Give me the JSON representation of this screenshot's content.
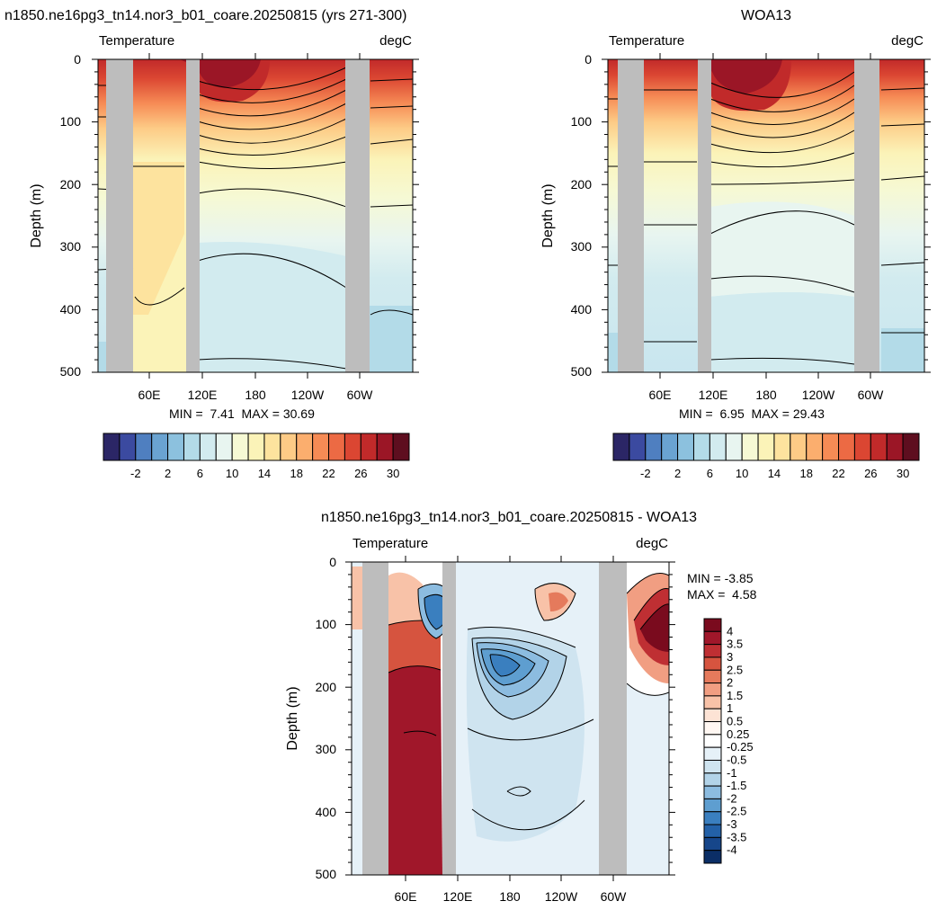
{
  "panels": [
    {
      "id": "model",
      "title": "n1850.ne16pg3_tn14.nor3_b01_coare.20250815 (yrs 271-300)",
      "left_label": "Temperature",
      "right_label": "degC",
      "ylabel": "Depth (m)",
      "y_ticks": [
        "0",
        "100",
        "200",
        "300",
        "400",
        "500"
      ],
      "x_ticks": [
        "60E",
        "120E",
        "180",
        "120W",
        "60W"
      ],
      "stats_text": "MIN =  7.41  MAX = 30.69"
    },
    {
      "id": "obs",
      "title": "WOA13",
      "left_label": "Temperature",
      "right_label": "degC",
      "ylabel": "Depth (m)",
      "y_ticks": [
        "0",
        "100",
        "200",
        "300",
        "400",
        "500"
      ],
      "x_ticks": [
        "60E",
        "120E",
        "180",
        "120W",
        "60W"
      ],
      "stats_text": "MIN =  6.95  MAX = 29.43"
    },
    {
      "id": "diff",
      "title": "n1850.ne16pg3_tn14.nor3_b01_coare.20250815 - WOA13",
      "left_label": "Temperature",
      "right_label": "degC",
      "ylabel": "Depth (m)",
      "y_ticks": [
        "0",
        "100",
        "200",
        "300",
        "400",
        "500"
      ],
      "x_ticks": [
        "60E",
        "120E",
        "180",
        "120W",
        "60W"
      ],
      "stats_min": "MIN = -3.85",
      "stats_max": "MAX =  4.58"
    }
  ],
  "temp_colorbar": {
    "labels": [
      "-2",
      "2",
      "6",
      "10",
      "14",
      "18",
      "22",
      "26",
      "30"
    ],
    "colors": [
      "#2b2666",
      "#3b4aa0",
      "#4f7fc0",
      "#6aa3d1",
      "#8cc1de",
      "#b3dbe8",
      "#d2ebef",
      "#e8f5f0",
      "#f6f9d4",
      "#fbf3b8",
      "#fde39e",
      "#fdcb86",
      "#fbae6e",
      "#f68b55",
      "#ec6a44",
      "#db4632",
      "#c12a2a",
      "#9b1626",
      "#5e0e1f"
    ]
  },
  "diff_colorbar": {
    "labels": [
      "4",
      "3.5",
      "3",
      "2.5",
      "2",
      "1.5",
      "1",
      "0.5",
      "0.25",
      "-0.25",
      "-0.5",
      "-1",
      "-1.5",
      "-2",
      "-2.5",
      "-3",
      "-3.5",
      "-4"
    ],
    "colors": [
      "#7a0b1e",
      "#a0172a",
      "#bf2f33",
      "#d6543f",
      "#e57a5c",
      "#f19e82",
      "#f8c2a8",
      "#fde3d5",
      "#fff7f2",
      "#ffffff",
      "#e6f1f8",
      "#cfe4f0",
      "#b2d3e8",
      "#8cbce0",
      "#5e9ed0",
      "#3a7fbf",
      "#2361a8",
      "#16468a",
      "#0b2e66"
    ]
  },
  "chart_data": [
    {
      "type": "heatmap",
      "title": "n1850.ne16pg3_tn14.nor3_b01_coare.20250815 (yrs 271-300)",
      "variable": "Temperature",
      "units": "degC",
      "ylabel": "Depth (m)",
      "ylim": [
        500,
        0
      ],
      "x_tick_labels": [
        "60E",
        "120E",
        "180",
        "120W",
        "60W"
      ],
      "min": 7.41,
      "max": 30.69,
      "contour_levels": [
        -2,
        0,
        2,
        4,
        6,
        8,
        10,
        12,
        14,
        16,
        18,
        20,
        22,
        24,
        26,
        28,
        30
      ],
      "grid": false
    },
    {
      "type": "heatmap",
      "title": "WOA13",
      "variable": "Temperature",
      "units": "degC",
      "ylabel": "Depth (m)",
      "ylim": [
        500,
        0
      ],
      "x_tick_labels": [
        "60E",
        "120E",
        "180",
        "120W",
        "60W"
      ],
      "min": 6.95,
      "max": 29.43,
      "contour_levels": [
        -2,
        0,
        2,
        4,
        6,
        8,
        10,
        12,
        14,
        16,
        18,
        20,
        22,
        24,
        26,
        28,
        30
      ],
      "grid": false
    },
    {
      "type": "heatmap",
      "title": "n1850.ne16pg3_tn14.nor3_b01_coare.20250815 - WOA13",
      "variable": "Temperature",
      "units": "degC",
      "ylabel": "Depth (m)",
      "ylim": [
        500,
        0
      ],
      "x_tick_labels": [
        "60E",
        "120E",
        "180",
        "120W",
        "60W"
      ],
      "min": -3.85,
      "max": 4.58,
      "contour_levels": [
        -4,
        -3.5,
        -3,
        -2.5,
        -2,
        -1.5,
        -1,
        -0.5,
        -0.25,
        0.25,
        0.5,
        1,
        1.5,
        2,
        2.5,
        3,
        3.5,
        4
      ],
      "grid": false
    }
  ]
}
